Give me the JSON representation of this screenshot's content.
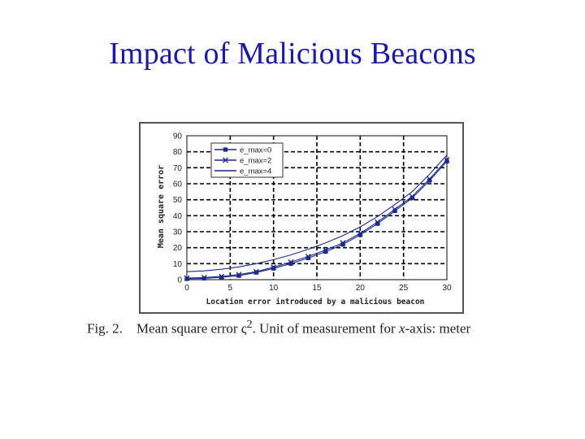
{
  "slide": {
    "title": "Impact of Malicious Beacons"
  },
  "caption": {
    "fig_label": "Fig. 2.",
    "text_before": "Mean square error ",
    "symbol": "ς",
    "superscript": "2",
    "text_mid": ". Unit of measurement for ",
    "variable": "x",
    "text_after": "-axis: meter"
  },
  "chart_data": {
    "type": "line",
    "title": "",
    "xlabel": "Location error introduced by a malicious beacon",
    "ylabel": "Mean square error",
    "xlim": [
      0,
      30
    ],
    "ylim": [
      0,
      90
    ],
    "x_ticks": [
      0,
      5,
      10,
      15,
      20,
      25,
      30
    ],
    "y_ticks": [
      0,
      10,
      20,
      30,
      40,
      50,
      60,
      70,
      80,
      90
    ],
    "grid": true,
    "legend_position": "top-left",
    "series": [
      {
        "name": "e_max=0",
        "marker": "square",
        "x": [
          0,
          2,
          4,
          6,
          8,
          10,
          12,
          14,
          16,
          18,
          20,
          22,
          24,
          26,
          28,
          30
        ],
        "values": [
          0.5,
          0.8,
          1.5,
          2.5,
          4.5,
          7,
          10,
          13.5,
          17.5,
          22,
          28,
          35,
          43,
          51,
          62,
          74
        ]
      },
      {
        "name": "e_max=2",
        "marker": "x",
        "x": [
          0,
          2,
          4,
          6,
          8,
          10,
          12,
          14,
          16,
          18,
          20,
          22,
          24,
          26,
          28,
          30
        ],
        "values": [
          1,
          1.3,
          2,
          3.2,
          5,
          7.8,
          11,
          14.5,
          18.5,
          23,
          29,
          36,
          44,
          52,
          63,
          75
        ]
      },
      {
        "name": "e_max=4",
        "marker": "none",
        "x": [
          0,
          2,
          4,
          6,
          8,
          10,
          12,
          14,
          16,
          18,
          20,
          22,
          24,
          26,
          28,
          30
        ],
        "values": [
          5,
          5.5,
          6.5,
          8,
          10,
          12.5,
          15.5,
          19,
          23,
          27.5,
          33,
          39.5,
          47,
          55,
          66,
          78
        ]
      }
    ],
    "colors": {
      "line": "#1c2a8c",
      "grid": "#000000",
      "panel_border": "#555555"
    }
  }
}
